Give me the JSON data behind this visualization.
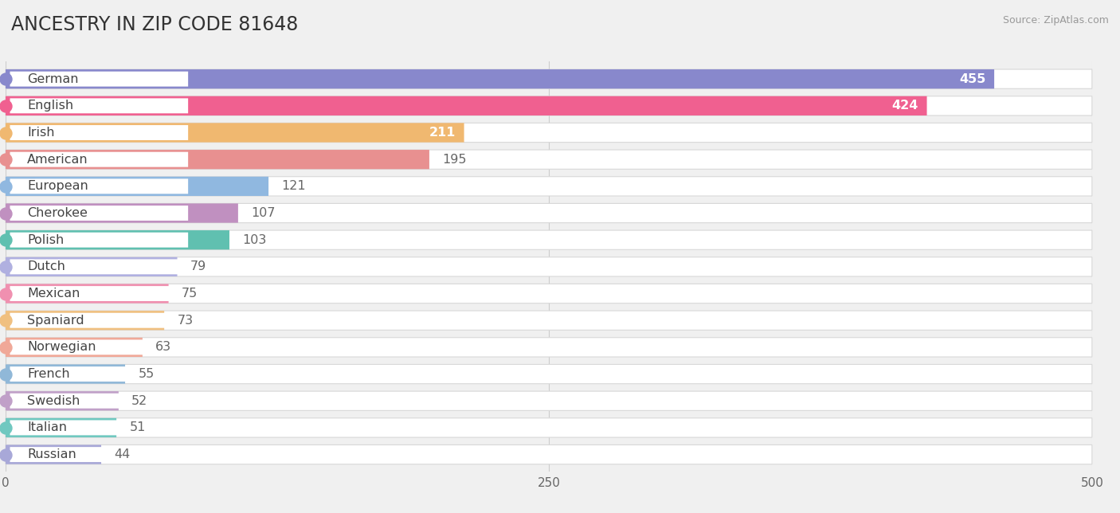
{
  "title": "ANCESTRY IN ZIP CODE 81648",
  "source": "Source: ZipAtlas.com",
  "categories": [
    "German",
    "English",
    "Irish",
    "American",
    "European",
    "Cherokee",
    "Polish",
    "Dutch",
    "Mexican",
    "Spaniard",
    "Norwegian",
    "French",
    "Swedish",
    "Italian",
    "Russian"
  ],
  "values": [
    455,
    424,
    211,
    195,
    121,
    107,
    103,
    79,
    75,
    73,
    63,
    55,
    52,
    51,
    44
  ],
  "bar_colors": [
    "#8888cc",
    "#f06090",
    "#f0b870",
    "#e89090",
    "#90b8e0",
    "#c090c0",
    "#60c0b0",
    "#b0b0e0",
    "#f090b0",
    "#f0c080",
    "#f0a898",
    "#90b8d8",
    "#c0a0c8",
    "#70c8c0",
    "#a8a8d8"
  ],
  "background_color": "#f0f0f0",
  "bar_background": "#ffffff",
  "xlim": [
    0,
    500
  ],
  "xticks": [
    0,
    250,
    500
  ],
  "value_label_color_threshold": 200,
  "title_fontsize": 17,
  "tick_fontsize": 11,
  "label_fontsize": 11.5
}
